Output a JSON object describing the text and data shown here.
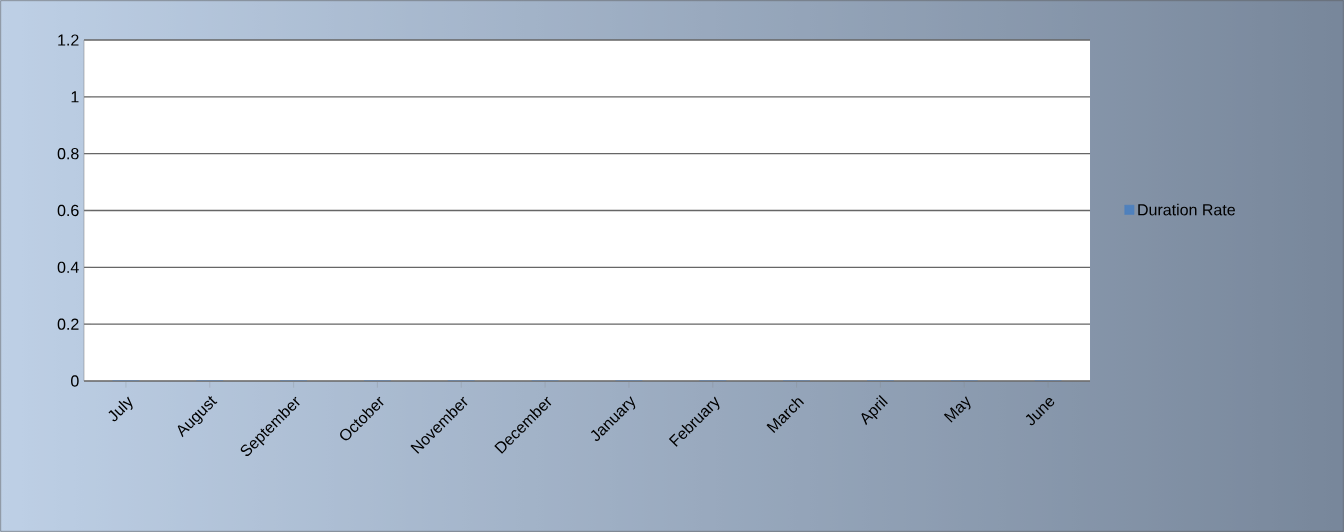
{
  "chart_data": {
    "type": "bar",
    "categories": [
      "July",
      "August",
      "September",
      "October",
      "November",
      "December",
      "January",
      "February",
      "March",
      "April",
      "May",
      "June"
    ],
    "series": [
      {
        "name": "Duration Rate",
        "color": "#4f81bd",
        "values": [
          0,
          0,
          0,
          0,
          0,
          0,
          0,
          0,
          0,
          0,
          0,
          0
        ]
      }
    ],
    "ylim": [
      0,
      1.2
    ],
    "yticks": [
      0,
      0.2,
      0.4,
      0.6,
      0.8,
      1,
      1.2
    ],
    "grid": "y",
    "legend": "right"
  }
}
